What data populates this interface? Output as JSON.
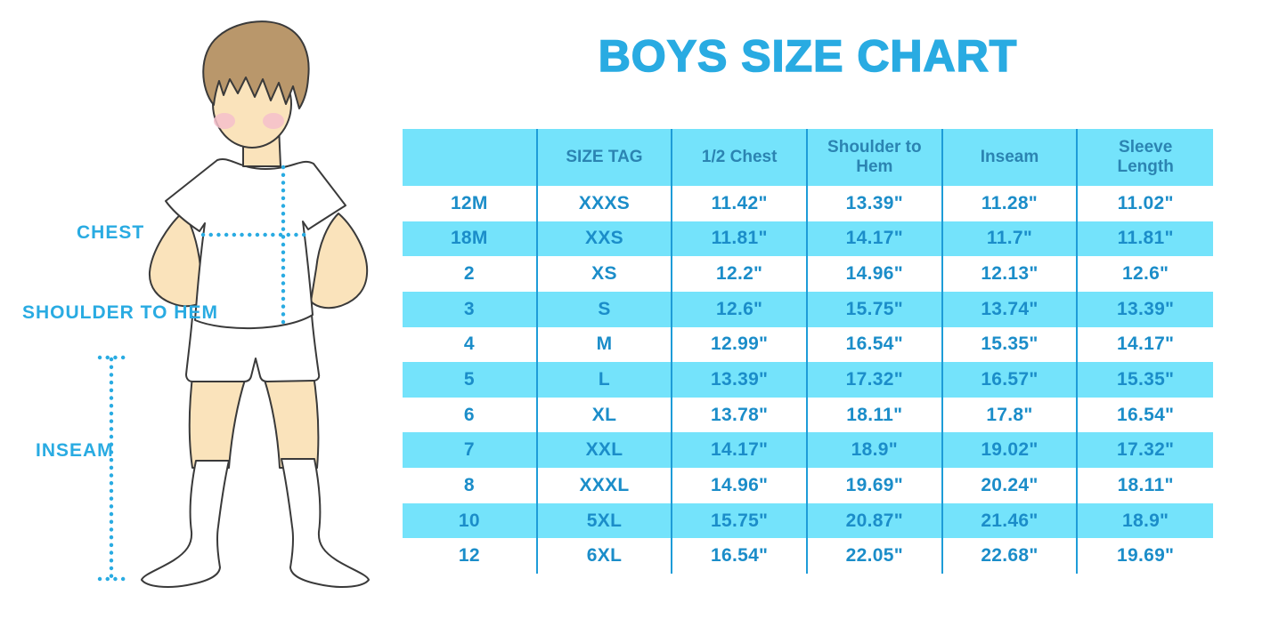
{
  "title": "BOYS SIZE CHART",
  "illustration": {
    "description": "Outline drawing of a boy in t-shirt, shorts and knee socks with dotted measurement guides",
    "labels": {
      "chest": "CHEST",
      "shoulder_to_hem": "SHOULDER TO HEM",
      "inseam": "INSEAM"
    }
  },
  "colors": {
    "accent_blue": "#29ABE2",
    "table_stripe_cyan": "#74E3FB",
    "table_grid_line": "#1E9CD8",
    "header_text": "#2B84B2",
    "cell_text": "#1B8DC9",
    "skin": "#FAE3BB",
    "hair": "#B9976B",
    "blush": "#F5BFCB"
  },
  "chart_data": {
    "type": "table",
    "title": "BOYS SIZE CHART",
    "columns": [
      "",
      "SIZE TAG",
      "1/2 Chest",
      "Shoulder to Hem",
      "Inseam",
      "Sleeve Length"
    ],
    "rows": [
      [
        "12M",
        "XXXS",
        "11.42\"",
        "13.39\"",
        "11.28\"",
        "11.02\""
      ],
      [
        "18M",
        "XXS",
        "11.81\"",
        "14.17\"",
        "11.7\"",
        "11.81\""
      ],
      [
        "2",
        "XS",
        "12.2\"",
        "14.96\"",
        "12.13\"",
        "12.6\""
      ],
      [
        "3",
        "S",
        "12.6\"",
        "15.75\"",
        "13.74\"",
        "13.39\""
      ],
      [
        "4",
        "M",
        "12.99\"",
        "16.54\"",
        "15.35\"",
        "14.17\""
      ],
      [
        "5",
        "L",
        "13.39\"",
        "17.32\"",
        "16.57\"",
        "15.35\""
      ],
      [
        "6",
        "XL",
        "13.78\"",
        "18.11\"",
        "17.8\"",
        "16.54\""
      ],
      [
        "7",
        "XXL",
        "14.17\"",
        "18.9\"",
        "19.02\"",
        "17.32\""
      ],
      [
        "8",
        "XXXL",
        "14.96\"",
        "19.69\"",
        "20.24\"",
        "18.11\""
      ],
      [
        "10",
        "5XL",
        "15.75\"",
        "20.87\"",
        "21.46\"",
        "18.9\""
      ],
      [
        "12",
        "6XL",
        "16.54\"",
        "22.05\"",
        "22.68\"",
        "19.69\""
      ]
    ],
    "layout": {
      "striping": "header and every second data row cyan, others white",
      "grid": "vertical column separators only, no horizontal lines"
    }
  }
}
